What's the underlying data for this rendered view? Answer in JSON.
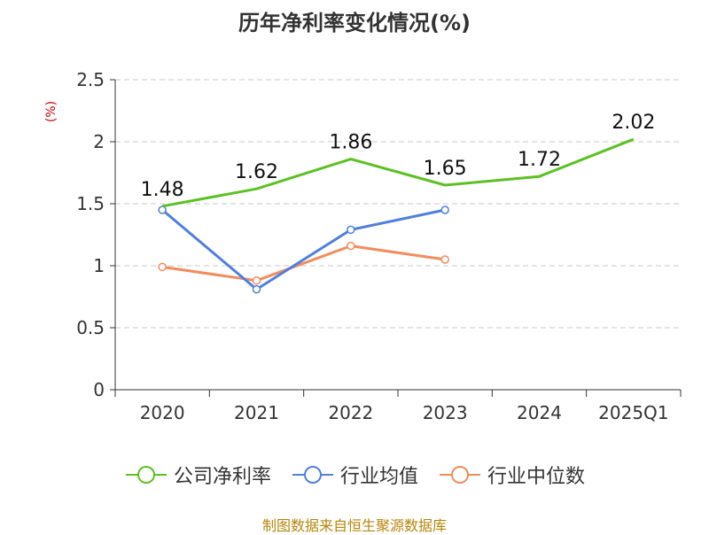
{
  "chart_data": {
    "type": "line",
    "title": "历年净利率变化情况(%)",
    "ylabel": "(%)",
    "xlabel": "",
    "categories": [
      "2020",
      "2021",
      "2022",
      "2023",
      "2024",
      "2025Q1"
    ],
    "ylim": [
      0,
      2.5
    ],
    "yticks": [
      "0",
      "0.5",
      "1",
      "1.5",
      "2",
      "2.5"
    ],
    "grid": true,
    "legend_position": "bottom",
    "series": [
      {
        "name": "公司净利率",
        "color": "#5cc124",
        "values": [
          1.48,
          1.62,
          1.86,
          1.65,
          1.72,
          2.02
        ],
        "labels": [
          "1.48",
          "1.62",
          "1.86",
          "1.65",
          "1.72",
          "2.02"
        ],
        "markers": false
      },
      {
        "name": "行业均值",
        "color": "#4f7fe0",
        "values": [
          1.45,
          0.81,
          1.29,
          1.45,
          null,
          null
        ],
        "markers": true
      },
      {
        "name": "行业中位数",
        "color": "#f28c5c",
        "values": [
          0.99,
          0.88,
          1.16,
          1.05,
          null,
          null
        ],
        "markers": true
      }
    ]
  },
  "source_note": "制图数据来自恒生聚源数据库"
}
